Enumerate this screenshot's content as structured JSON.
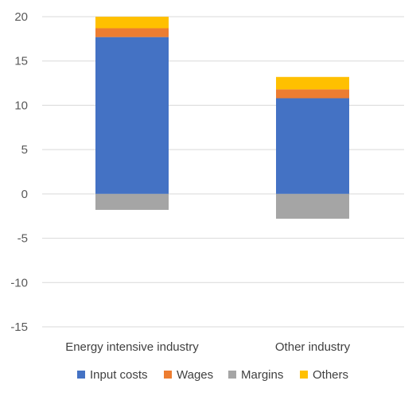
{
  "chart_data": {
    "type": "bar",
    "stacked": true,
    "categories": [
      "Energy intensive industry",
      "Other industry"
    ],
    "series": [
      {
        "name": "Input costs",
        "color": "#4472C4",
        "values": [
          17.7,
          10.8
        ]
      },
      {
        "name": "Wages",
        "color": "#ED7D31",
        "values": [
          1.0,
          1.0
        ]
      },
      {
        "name": "Margins",
        "color": "#A5A5A5",
        "values": [
          -1.8,
          -2.8
        ]
      },
      {
        "name": "Others",
        "color": "#FFC000",
        "values": [
          1.3,
          1.4
        ]
      }
    ],
    "ylim": [
      -15,
      20
    ],
    "yticks": [
      20,
      15,
      10,
      5,
      0,
      -5,
      -10,
      -15
    ],
    "ytick_labels": [
      "20",
      "15",
      "10",
      "5",
      "0",
      "-5",
      "-10",
      "-15"
    ],
    "grid": true,
    "legend_position": "bottom",
    "title": "",
    "xlabel": "",
    "ylabel": ""
  }
}
